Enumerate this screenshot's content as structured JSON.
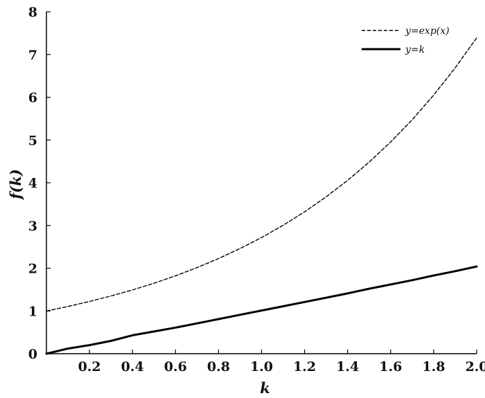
{
  "chart_data": {
    "type": "line",
    "title": "",
    "xlabel": "k",
    "ylabel": "f(k)",
    "xlim": [
      0,
      2.0
    ],
    "ylim": [
      0,
      8
    ],
    "x_ticks": [
      "0.2",
      "0.4",
      "0.6",
      "0.8",
      "1.0",
      "1.2",
      "1.4",
      "1.6",
      "1.8",
      "2.0"
    ],
    "x_tick_values": [
      0.2,
      0.4,
      0.6,
      0.8,
      1.0,
      1.2,
      1.4,
      1.6,
      1.8,
      2.0
    ],
    "y_ticks": [
      "0",
      "1",
      "2",
      "3",
      "4",
      "5",
      "6",
      "7",
      "8"
    ],
    "y_tick_values": [
      0,
      1,
      2,
      3,
      4,
      5,
      6,
      7,
      8
    ],
    "grid": false,
    "legend_position": "top-right",
    "series": [
      {
        "name": "y=exp(x)",
        "style": "dashed",
        "color": "#000000",
        "x": [
          0,
          0.1,
          0.2,
          0.3,
          0.4,
          0.5,
          0.6,
          0.7,
          0.8,
          0.9,
          1.0,
          1.1,
          1.2,
          1.3,
          1.4,
          1.5,
          1.6,
          1.7,
          1.8,
          1.9,
          2.0
        ],
        "y": [
          1.0,
          1.105,
          1.221,
          1.35,
          1.492,
          1.649,
          1.822,
          2.014,
          2.226,
          2.46,
          2.718,
          3.004,
          3.32,
          3.669,
          4.055,
          4.482,
          4.953,
          5.474,
          6.05,
          6.686,
          7.389
        ]
      },
      {
        "name": "y=k",
        "style": "solid",
        "color": "#000000",
        "x": [
          0,
          0.1,
          0.2,
          0.3,
          0.4,
          0.5,
          0.6,
          0.7,
          0.8,
          0.9,
          1.0,
          1.1,
          1.2,
          1.3,
          1.4,
          1.5,
          1.6,
          1.7,
          1.8,
          1.9,
          2.0
        ],
        "y": [
          0,
          0.12,
          0.2,
          0.3,
          0.43,
          0.52,
          0.61,
          0.71,
          0.81,
          0.91,
          1.01,
          1.11,
          1.21,
          1.31,
          1.41,
          1.52,
          1.62,
          1.72,
          1.83,
          1.93,
          2.04
        ]
      }
    ]
  }
}
